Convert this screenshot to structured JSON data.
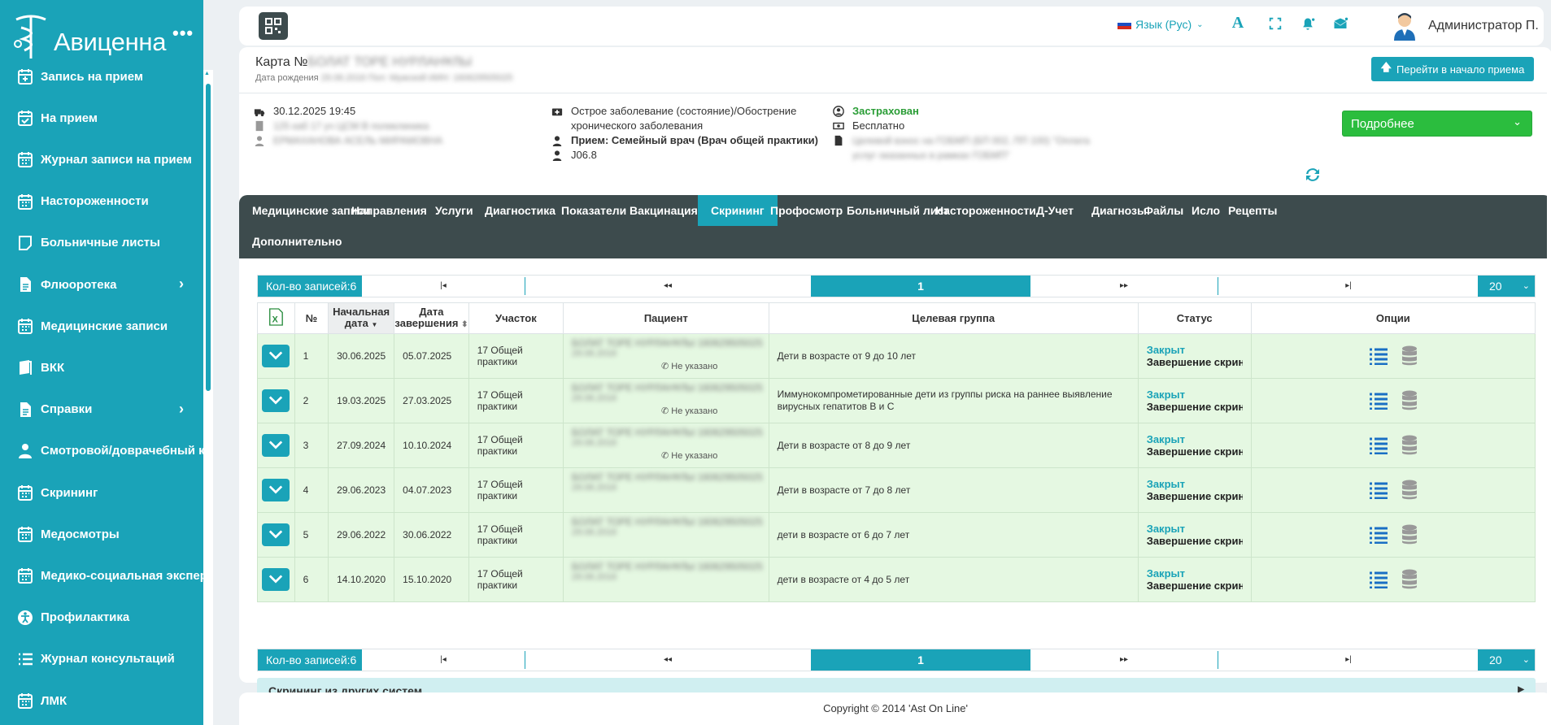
{
  "sidebar": {
    "brand": "Авиценна",
    "more": "•••",
    "items": [
      {
        "label": "Запись на прием",
        "icon": "calendar-plus-icon",
        "chevron": false
      },
      {
        "label": "На прием",
        "icon": "calendar-check-icon",
        "chevron": false
      },
      {
        "label": "Журнал записи на прием",
        "icon": "calendar-icon",
        "chevron": false
      },
      {
        "label": "Настороженности",
        "icon": "calendar-icon",
        "chevron": false
      },
      {
        "label": "Больничные листы",
        "icon": "note-icon",
        "chevron": false
      },
      {
        "label": "Флюоротека",
        "icon": "file-icon",
        "chevron": true
      },
      {
        "label": "Медицинские записи",
        "icon": "calendar-icon",
        "chevron": false
      },
      {
        "label": "ВКК",
        "icon": "book-icon",
        "chevron": false
      },
      {
        "label": "Справки",
        "icon": "file-icon",
        "chevron": true
      },
      {
        "label": "Смотровой/доврачебный кабинет",
        "icon": "user-doctor-icon",
        "chevron": false
      },
      {
        "label": "Скрининг",
        "icon": "calendar-icon",
        "chevron": false
      },
      {
        "label": "Медосмотры",
        "icon": "calendar-icon",
        "chevron": false
      },
      {
        "label": "Медико-социальная экспертиза",
        "icon": "calendar-icon",
        "chevron": false
      },
      {
        "label": "Профилактика",
        "icon": "universal-access-icon",
        "chevron": false
      },
      {
        "label": "Журнал консультаций",
        "icon": "list-icon",
        "chevron": false
      },
      {
        "label": "ЛМК",
        "icon": "calendar-icon",
        "chevron": false
      }
    ]
  },
  "topbar": {
    "language": "Язык (Рус)",
    "username": "Администратор П."
  },
  "card": {
    "title": "Карта №",
    "title_blurred": "БОЛАТ ТОРЕ НУРЛАНҰЛЫ",
    "subtitle": "Дата рождения",
    "subtitle_blurred": "29.06.2016   Пол: Мужской   ИИН: 160629505025",
    "goto_button": "Перейти в начало приема",
    "datetime": "30.12.2025 19:45",
    "room_blurred": "125 каб 17 уч ЦСМ В поликлиника",
    "doctor_blurred": "ЕРМАХАНОВА АСЕЛЬ МИРАМОВНА",
    "condition": "Острое заболевание (состояние)/Обострение хронического заболевания",
    "visit_label": "Прием:",
    "visit": "Семейный врач (Врач общей практики)",
    "diagnosis_code": "J06.8",
    "insurance": "Застрахован",
    "payment": "Бесплатно",
    "program_blurred": "Целевой взнос на ГОБМП (БП 002, ПП 100) \"Оплата услуг оказанных в рамках ГОБМП\"",
    "more_select": "Подробнее"
  },
  "tabs": [
    "Медицинские записи",
    "Направления",
    "Услуги",
    "Диагностика",
    "Показатели",
    "Вакцинация",
    "Скрининг",
    "Профосмотр",
    "Больничный лист",
    "Настороженности",
    "Д-Учет",
    "Диагнозы",
    "Файлы",
    "Исло",
    "Рецепты",
    "Дополнительно"
  ],
  "active_tab": "Скрининг",
  "pager": {
    "count_label": "Кол-во записей:6",
    "first": "|◂",
    "prev": "◂◂",
    "current_page": "1",
    "next": "▸▸",
    "last": "▸|",
    "page_size": "20"
  },
  "table": {
    "columns": [
      "№",
      "Начальная дата",
      "Дата завершения",
      "Участок",
      "Пациент",
      "Целевая группа",
      "Статус",
      "Опции"
    ],
    "sort_desc": "▼",
    "sort_both": "⬍",
    "rows": [
      {
        "num": "1",
        "start": "30.06.2025",
        "end": "05.07.2025",
        "area": "17 Общей практики",
        "patient": "БОЛАТ ТОРЕ НУРЛАНҰЛЫ 160629505025",
        "patient_dob": "29.06.2016",
        "phone": "Не указано",
        "group": "Дети в возрасте от 9 до 10 лет",
        "status1": "Закрыт",
        "status2": "Завершение скрининга"
      },
      {
        "num": "2",
        "start": "19.03.2025",
        "end": "27.03.2025",
        "area": "17 Общей практики",
        "patient": "БОЛАТ ТОРЕ НУРЛАНҰЛЫ 160629505025",
        "patient_dob": "29.06.2016",
        "phone": "Не указано",
        "group": "Иммунокомпрометированные дети из группы риска на раннее выявление вирусных гепатитов В и С",
        "status1": "Закрыт",
        "status2": "Завершение скрининга"
      },
      {
        "num": "3",
        "start": "27.09.2024",
        "end": "10.10.2024",
        "area": "17 Общей практики",
        "patient": "БОЛАТ ТОРЕ НУРЛАНҰЛЫ 160629505025",
        "patient_dob": "29.06.2016",
        "phone": "Не указано",
        "group": "Дети в возрасте от 8 до 9 лет",
        "status1": "Закрыт",
        "status2": "Завершение скрининга"
      },
      {
        "num": "4",
        "start": "29.06.2023",
        "end": "04.07.2023",
        "area": "17 Общей практики",
        "patient": "БОЛАТ ТОРЕ НУРЛАНҰЛЫ 160629505025",
        "patient_dob": "29.06.2016",
        "phone": "",
        "group": "Дети в возрасте от 7 до 8 лет",
        "status1": "Закрыт",
        "status2": "Завершение скрининга"
      },
      {
        "num": "5",
        "start": "29.06.2022",
        "end": "30.06.2022",
        "area": "17 Общей практики",
        "patient": "БОЛАТ ТОРЕ НУРЛАНҰЛЫ 160629505025",
        "patient_dob": "29.06.2016",
        "phone": "",
        "group": "дети в возрасте от 6 до 7 лет",
        "status1": "Закрыт",
        "status2": "Завершение скрининга"
      },
      {
        "num": "6",
        "start": "14.10.2020",
        "end": "15.10.2020",
        "area": "17 Общей практики",
        "patient": "БОЛАТ ТОРЕ НУРЛАНҰЛЫ 160629505025",
        "patient_dob": "29.06.2016",
        "phone": "",
        "group": "дети в возрасте от 4 до 5 лет",
        "status1": "Закрыт",
        "status2": "Завершение скрининга"
      }
    ]
  },
  "other_screening": "Скрининг из других систем",
  "footer": "Copyright © 2014 'Ast On Line'",
  "colors": {
    "accent": "#1aa3b8",
    "tabs_bg": "#3d4b4d",
    "row_bg": "#e5f8e2",
    "success": "#2bbd3e"
  }
}
